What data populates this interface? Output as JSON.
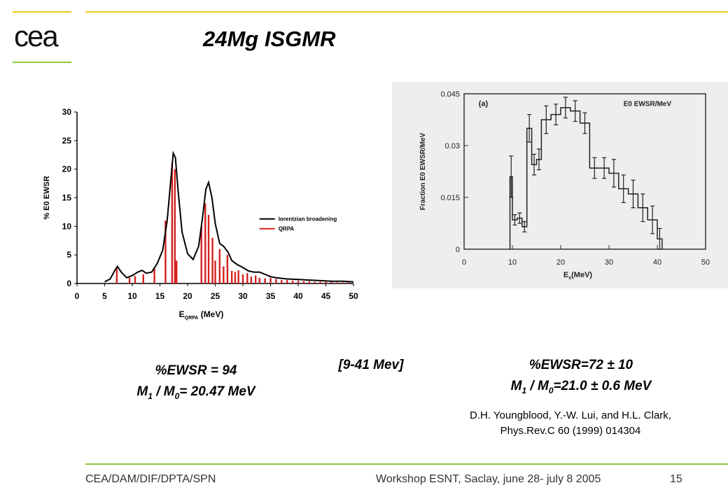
{
  "slide": {
    "title": "24Mg ISGMR",
    "logo_text": "cea",
    "footer_org": "CEA/DAM/DIF/DPTA/SPN",
    "footer_event": "Workshop ESNT, Saclay,  june 28- july 8 2005",
    "page_number": "15",
    "colors": {
      "accent_gold": "#f0c814",
      "accent_green": "#8cc83c",
      "qrpa_red": "#d42020",
      "scan_bg": "#eeeeee"
    }
  },
  "left_result": {
    "line1": "%EWSR = 94",
    "m1": "M",
    "sub1": "1",
    "slash": " / M",
    "sub0": "0",
    "value": "= 20.47 MeV"
  },
  "range_label": "[9-41 Mev]",
  "right_result": {
    "line1": "%EWSR=72 ± 10",
    "m1": "M",
    "sub1": "1",
    "slash": " / M",
    "sub0": "0",
    "value": "=21.0 ± 0.6 MeV"
  },
  "reference": {
    "line1": "D.H. Youngblood, Y.-W. Lui, and H.L. Clark,",
    "line2": "Phys.Rev.C 60 (1999) 014304"
  },
  "chart_data": [
    {
      "type": "line",
      "xlabel_main": "E",
      "xlabel_sub": "QRPA",
      "xlabel_unit": " (MeV)",
      "ylabel": "% E0 EWSR",
      "xlim": [
        0,
        50
      ],
      "ylim": [
        0,
        30
      ],
      "x_ticks": [
        "0",
        "5",
        "10",
        "15",
        "20",
        "25",
        "30",
        "35",
        "40",
        "45",
        "50"
      ],
      "y_ticks": [
        "0",
        "5",
        "10",
        "15",
        "20",
        "25",
        "30"
      ],
      "legend_position": "right",
      "series": [
        {
          "name": "lorentzian broadening",
          "color": "#000000",
          "x": [
            5,
            6,
            6.8,
            7.3,
            8,
            9,
            10,
            11,
            11.8,
            12.5,
            13.5,
            14.5,
            15.5,
            16.3,
            17,
            17.4,
            17.8,
            18.3,
            19,
            20,
            21,
            22,
            22.7,
            23.3,
            23.8,
            24.4,
            25,
            25.8,
            26.5,
            27.3,
            28,
            29,
            30,
            31,
            32,
            33,
            34,
            35,
            36,
            38,
            40,
            42,
            44,
            46,
            48,
            50
          ],
          "y": [
            0.3,
            0.8,
            2.2,
            3.0,
            2.0,
            1.0,
            1.4,
            2.0,
            2.3,
            1.8,
            2.0,
            3.5,
            5.8,
            11,
            18.5,
            22.8,
            22,
            16,
            9,
            5.2,
            4.2,
            6.5,
            11.5,
            16.5,
            17.7,
            15,
            10.5,
            7,
            6.5,
            5.5,
            4.0,
            3.3,
            2.8,
            2.2,
            2.0,
            2.0,
            1.6,
            1.2,
            1.0,
            0.8,
            0.7,
            0.6,
            0.5,
            0.4,
            0.4,
            0.3
          ]
        },
        {
          "name": "QRPA",
          "color": "#d42020",
          "type": "bar",
          "x": [
            7.2,
            9.5,
            10.5,
            12,
            14,
            16,
            17.2,
            17.7,
            18,
            22.5,
            23.2,
            23.8,
            24.5,
            25,
            25.8,
            26.5,
            27.2,
            28,
            28.6,
            29.2,
            30,
            30.8,
            31.5,
            32.3,
            33,
            34,
            35,
            36,
            37,
            38,
            39,
            40,
            41,
            42,
            43,
            44,
            45,
            46,
            47,
            48,
            49
          ],
          "y": [
            2.6,
            1.0,
            1.3,
            1.6,
            2.6,
            11,
            21,
            20,
            4,
            10,
            14,
            12,
            8,
            4,
            6,
            3,
            5,
            2.2,
            2,
            2.3,
            1.6,
            1.8,
            1.2,
            1.4,
            1.0,
            0.9,
            1.0,
            0.8,
            0.6,
            0.6,
            0.5,
            0.5,
            0.4,
            0.4,
            0.3,
            0.3,
            0.3,
            0.3,
            0.2,
            0.2,
            0.2
          ]
        }
      ]
    },
    {
      "type": "line",
      "panel_label": "(a)",
      "legend_text": "E0  EWSR/MeV",
      "xlabel_main": "E",
      "xlabel_sub": "x",
      "xlabel_unit": "(MeV)",
      "ylabel": "Fraction E0 EWSR/MeV",
      "xlim": [
        0,
        50
      ],
      "ylim": [
        0,
        0.045
      ],
      "x_ticks": [
        "0",
        "10",
        "20",
        "30",
        "40",
        "50"
      ],
      "y_ticks": [
        "0",
        "0.015",
        "0.03",
        "0.045"
      ],
      "series": [
        {
          "name": "E0  EWSR/MeV",
          "color": "#222222",
          "bins": [
            [
              9.5,
              10,
              0.021
            ],
            [
              10,
              11,
              0.0085
            ],
            [
              11,
              12,
              0.009
            ],
            [
              12,
              13,
              0.0065
            ],
            [
              13,
              14,
              0.035
            ],
            [
              14,
              15,
              0.0245
            ],
            [
              15,
              16,
              0.026
            ],
            [
              16,
              18,
              0.0375
            ],
            [
              18,
              20,
              0.039
            ],
            [
              20,
              22,
              0.041
            ],
            [
              22,
              24,
              0.04
            ],
            [
              24,
              26,
              0.0365
            ],
            [
              26,
              28,
              0.0235
            ],
            [
              28,
              30,
              0.0235
            ],
            [
              30,
              32,
              0.022
            ],
            [
              32,
              34,
              0.0175
            ],
            [
              34,
              36,
              0.016
            ],
            [
              36,
              38,
              0.012
            ],
            [
              38,
              40,
              0.0085
            ],
            [
              40,
              41,
              0.003
            ]
          ],
          "errors": [
            0.006,
            0.0015,
            0.0015,
            0.0015,
            0.004,
            0.003,
            0.003,
            0.004,
            0.003,
            0.003,
            0.003,
            0.003,
            0.003,
            0.003,
            0.004,
            0.004,
            0.004,
            0.004,
            0.004,
            0.003
          ]
        }
      ]
    }
  ]
}
